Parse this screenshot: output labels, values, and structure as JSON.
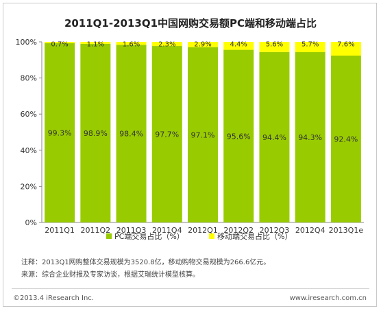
{
  "chart_data": {
    "type": "bar",
    "stacked": true,
    "title": "2011Q1-2013Q1中国网购交易额PC端和移动端占比",
    "categories": [
      "2011Q1",
      "2011Q2",
      "2011Q3",
      "2011Q4",
      "2012Q1",
      "2012Q2",
      "2012Q3",
      "2012Q4",
      "2013Q1e"
    ],
    "series": [
      {
        "name": "PC端交易占比（%）",
        "color": "#99cc00",
        "values": [
          99.3,
          98.9,
          98.4,
          97.7,
          97.1,
          95.6,
          94.4,
          94.3,
          92.4
        ],
        "labels": [
          "99.3%",
          "98.9%",
          "98.4%",
          "97.7%",
          "97.1%",
          "95.6%",
          "94.4%",
          "94.3%",
          "92.4%"
        ]
      },
      {
        "name": "移动端交易占比（%）",
        "color": "#ffff00",
        "values": [
          0.7,
          1.1,
          1.6,
          2.3,
          2.9,
          4.4,
          5.6,
          5.7,
          7.6
        ],
        "labels": [
          "0.7%",
          "1.1%",
          "1.6%",
          "2.3%",
          "2.9%",
          "4.4%",
          "5.6%",
          "5.7%",
          "7.6%"
        ]
      }
    ],
    "ylim": [
      0,
      100
    ],
    "yticks": [
      "0%",
      "20%",
      "40%",
      "60%",
      "80%",
      "100%"
    ],
    "legend": "bottom",
    "grid": false
  },
  "notes": [
    "注释：2013Q1网购整体交易规模为3520.8亿，移动购物交易规模为266.6亿元。",
    "来源：综合企业财报及专家访谈，根据艾瑞统计模型核算。"
  ],
  "footer": {
    "copyright": "©2013.4 iResearch Inc.",
    "website": "www.iresearch.com.cn"
  }
}
